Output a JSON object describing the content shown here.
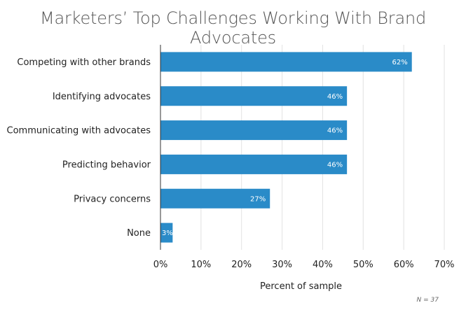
{
  "chart_data": {
    "type": "bar",
    "orientation": "horizontal",
    "title": "Marketers’ Top Challenges Working With Brand Advocates",
    "xlabel": "Percent of sample",
    "ylabel": "",
    "categories": [
      "Competing with other brands",
      "Identifying advocates",
      "Communicating with advocates",
      "Predicting behavior",
      "Privacy concerns",
      "None"
    ],
    "values": [
      62,
      46,
      46,
      46,
      27,
      3
    ],
    "data_labels": [
      "62%",
      "46%",
      "46%",
      "46%",
      "27%",
      "3%"
    ],
    "xlim": [
      0,
      70
    ],
    "xticks": [
      0,
      10,
      20,
      30,
      40,
      50,
      60,
      70
    ],
    "xtick_labels": [
      "0%",
      "10%",
      "20%",
      "30%",
      "40%",
      "50%",
      "60%",
      "70%"
    ],
    "grid": true,
    "bar_color": "#2a8bc8",
    "note": "N = 37"
  }
}
